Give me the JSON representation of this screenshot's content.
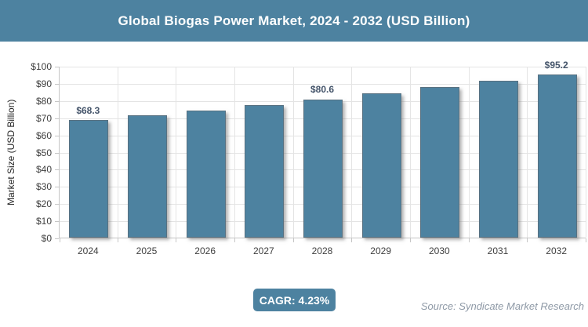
{
  "header": {
    "title": "Global Biogas Power Market, 2024 - 2032 (USD Billion)"
  },
  "chart_data": {
    "type": "bar",
    "title": "Global Biogas Power Market, 2024 - 2032 (USD Billion)",
    "categories": [
      "2024",
      "2025",
      "2026",
      "2027",
      "2028",
      "2029",
      "2030",
      "2031",
      "2032"
    ],
    "values": [
      68.3,
      71.2,
      74.2,
      77.3,
      80.6,
      84.0,
      87.6,
      91.3,
      95.2
    ],
    "bar_labels": [
      "$68.3",
      "",
      "",
      "",
      "$80.6",
      "",
      "",
      "",
      "$95.2"
    ],
    "xlabel": "",
    "ylabel": "Market Size (USD Billion)",
    "ylim": [
      0,
      100
    ],
    "ytick_step": 10,
    "ytick_prefix": "$",
    "grid": true,
    "legend": "none",
    "bar_color": "#4d82a0"
  },
  "footer": {
    "cagr_label": "CAGR: 4.23%",
    "source": "Source: Syndicate Market Research"
  },
  "colors": {
    "accent_teal": "#4d82a0",
    "value_label": "#44546a",
    "gridline": "#e4e4e4",
    "axis_line": "#c6c6c6",
    "source_text": "#8e99a6",
    "title_text": "#ffffff"
  }
}
